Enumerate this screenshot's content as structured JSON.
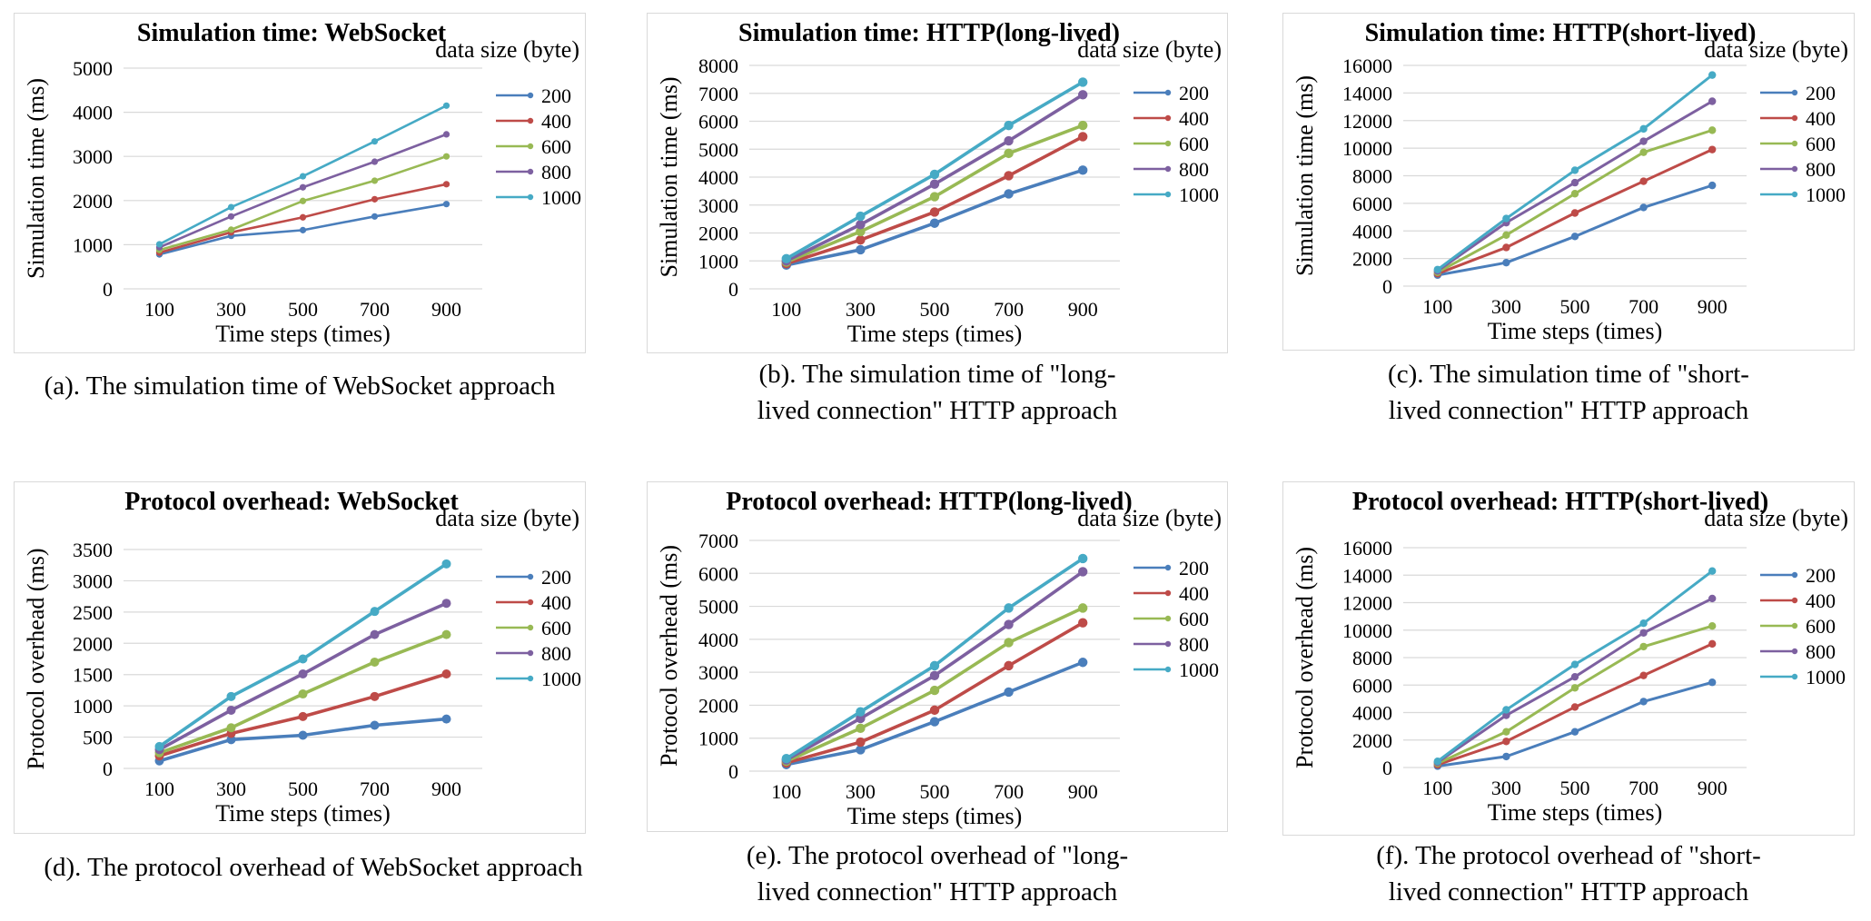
{
  "legend_title": "data size (byte)",
  "colors": {
    "200": "#4a7ebb",
    "400": "#be4b48",
    "600": "#98b954",
    "800": "#7d60a0",
    "1000": "#46aac5"
  },
  "charts": [
    {
      "caption_lines": [
        "(a). The simulation time of WebSocket approach"
      ],
      "chart_data": {
        "type": "line",
        "title": "Simulation time: WebSocket",
        "xlabel": "Time steps (times)",
        "ylabel": "Simulation time (ms)",
        "categories": [
          "100",
          "300",
          "500",
          "700",
          "900"
        ],
        "y_ticks": [
          "0",
          "1000",
          "2000",
          "3000",
          "4000",
          "5000"
        ],
        "ylim": [
          0,
          5000
        ],
        "legend_title": "data size (byte)",
        "legend_position": "right",
        "series": [
          {
            "name": "200",
            "values": [
              780,
              1200,
              1330,
              1640,
              1920
            ]
          },
          {
            "name": "400",
            "values": [
              820,
              1280,
              1620,
              2030,
              2370
            ]
          },
          {
            "name": "600",
            "values": [
              880,
              1340,
              1990,
              2450,
              3000
            ]
          },
          {
            "name": "800",
            "values": [
              940,
              1640,
              2300,
              2880,
              3500
            ]
          },
          {
            "name": "1000",
            "values": [
              1010,
              1850,
              2550,
              3340,
              4150
            ]
          }
        ]
      }
    },
    {
      "caption_lines": [
        "(b). The simulation time of \"long-",
        "lived connection\" HTTP approach"
      ],
      "chart_data": {
        "type": "line",
        "title": "Simulation time: HTTP(long-lived)",
        "xlabel": "Time steps (times)",
        "ylabel": "Simulation time (ms)",
        "categories": [
          "100",
          "300",
          "500",
          "700",
          "900"
        ],
        "y_ticks": [
          "0",
          "1000",
          "2000",
          "3000",
          "4000",
          "5000",
          "6000",
          "7000",
          "8000"
        ],
        "ylim": [
          0,
          8000
        ],
        "legend_title": "data size (byte)",
        "legend_position": "right",
        "series": [
          {
            "name": "200",
            "values": [
              850,
              1400,
              2350,
              3400,
              4250
            ]
          },
          {
            "name": "400",
            "values": [
              900,
              1750,
              2750,
              4050,
              5450
            ]
          },
          {
            "name": "600",
            "values": [
              960,
              2050,
              3300,
              4850,
              5850
            ]
          },
          {
            "name": "800",
            "values": [
              1000,
              2300,
              3750,
              5300,
              6950
            ]
          },
          {
            "name": "1000",
            "values": [
              1080,
              2600,
              4100,
              5850,
              7400
            ]
          }
        ]
      }
    },
    {
      "caption_lines": [
        "(c). The simulation time of \"short-",
        "lived connection\" HTTP approach"
      ],
      "chart_data": {
        "type": "line",
        "title": "Simulation time: HTTP(short-lived)",
        "xlabel": "Time steps (times)",
        "ylabel": "Simulation time (ms)",
        "categories": [
          "100",
          "300",
          "500",
          "700",
          "900"
        ],
        "y_ticks": [
          "0",
          "2000",
          "4000",
          "6000",
          "8000",
          "10000",
          "12000",
          "14000",
          "16000"
        ],
        "ylim": [
          0,
          16000
        ],
        "legend_title": "data size (byte)",
        "legend_position": "right",
        "series": [
          {
            "name": "200",
            "values": [
              800,
              1700,
              3600,
              5700,
              7300
            ]
          },
          {
            "name": "400",
            "values": [
              900,
              2800,
              5300,
              7600,
              9900
            ]
          },
          {
            "name": "600",
            "values": [
              1000,
              3700,
              6700,
              9700,
              11300
            ]
          },
          {
            "name": "800",
            "values": [
              1100,
              4600,
              7500,
              10500,
              13400
            ]
          },
          {
            "name": "1000",
            "values": [
              1200,
              4900,
              8400,
              11400,
              15300
            ]
          }
        ]
      }
    },
    {
      "caption_lines": [
        "(d). The protocol overhead of WebSocket approach"
      ],
      "chart_data": {
        "type": "line",
        "title": "Protocol overhead: WebSocket",
        "xlabel": "Time steps (times)",
        "ylabel": "Protocol overhead (ms)",
        "categories": [
          "100",
          "300",
          "500",
          "700",
          "900"
        ],
        "y_ticks": [
          "0",
          "500",
          "1000",
          "1500",
          "2000",
          "2500",
          "3000",
          "3500"
        ],
        "ylim": [
          0,
          3500
        ],
        "legend_title": "data size (byte)",
        "legend_position": "right",
        "series": [
          {
            "name": "200",
            "values": [
              120,
              460,
              530,
              690,
              790
            ]
          },
          {
            "name": "400",
            "values": [
              200,
              560,
              830,
              1150,
              1510
            ]
          },
          {
            "name": "600",
            "values": [
              250,
              650,
              1190,
              1700,
              2140
            ]
          },
          {
            "name": "800",
            "values": [
              300,
              930,
              1510,
              2140,
              2640
            ]
          },
          {
            "name": "1000",
            "values": [
              350,
              1150,
              1750,
              2510,
              3270
            ]
          }
        ]
      }
    },
    {
      "caption_lines": [
        "(e). The protocol overhead of \"long-",
        "lived connection\" HTTP approach"
      ],
      "chart_data": {
        "type": "line",
        "title": "Protocol overhead: HTTP(long-lived)",
        "xlabel": "Time steps (times)",
        "ylabel": "Protocol overhead (ms)",
        "categories": [
          "100",
          "300",
          "500",
          "700",
          "900"
        ],
        "y_ticks": [
          "0",
          "1000",
          "2000",
          "3000",
          "4000",
          "5000",
          "6000",
          "7000"
        ],
        "ylim": [
          0,
          7000
        ],
        "legend_title": "data size (byte)",
        "legend_position": "right",
        "series": [
          {
            "name": "200",
            "values": [
              200,
              650,
              1500,
              2400,
              3300
            ]
          },
          {
            "name": "400",
            "values": [
              250,
              880,
              1850,
              3200,
              4500
            ]
          },
          {
            "name": "600",
            "values": [
              300,
              1300,
              2450,
              3900,
              4950
            ]
          },
          {
            "name": "800",
            "values": [
              340,
              1600,
              2900,
              4450,
              6050
            ]
          },
          {
            "name": "1000",
            "values": [
              380,
              1800,
              3200,
              4950,
              6450
            ]
          }
        ]
      }
    },
    {
      "caption_lines": [
        "(f). The protocol overhead of \"short-",
        "lived connection\" HTTP approach"
      ],
      "chart_data": {
        "type": "line",
        "title": "Protocol overhead:  HTTP(short-lived)",
        "xlabel": "Time steps (times)",
        "ylabel": "Protocol overhead (ms)",
        "categories": [
          "100",
          "300",
          "500",
          "700",
          "900"
        ],
        "y_ticks": [
          "0",
          "2000",
          "4000",
          "6000",
          "8000",
          "10000",
          "12000",
          "14000",
          "16000"
        ],
        "ylim": [
          0,
          16000
        ],
        "legend_title": "data size (byte)",
        "legend_position": "right",
        "series": [
          {
            "name": "200",
            "values": [
              100,
              800,
              2600,
              4800,
              6200
            ]
          },
          {
            "name": "400",
            "values": [
              200,
              1900,
              4400,
              6700,
              9000
            ]
          },
          {
            "name": "600",
            "values": [
              300,
              2600,
              5800,
              8800,
              10300
            ]
          },
          {
            "name": "800",
            "values": [
              380,
              3800,
              6600,
              9800,
              12300
            ]
          },
          {
            "name": "1000",
            "values": [
              450,
              4200,
              7500,
              10500,
              14300
            ]
          }
        ]
      }
    }
  ]
}
